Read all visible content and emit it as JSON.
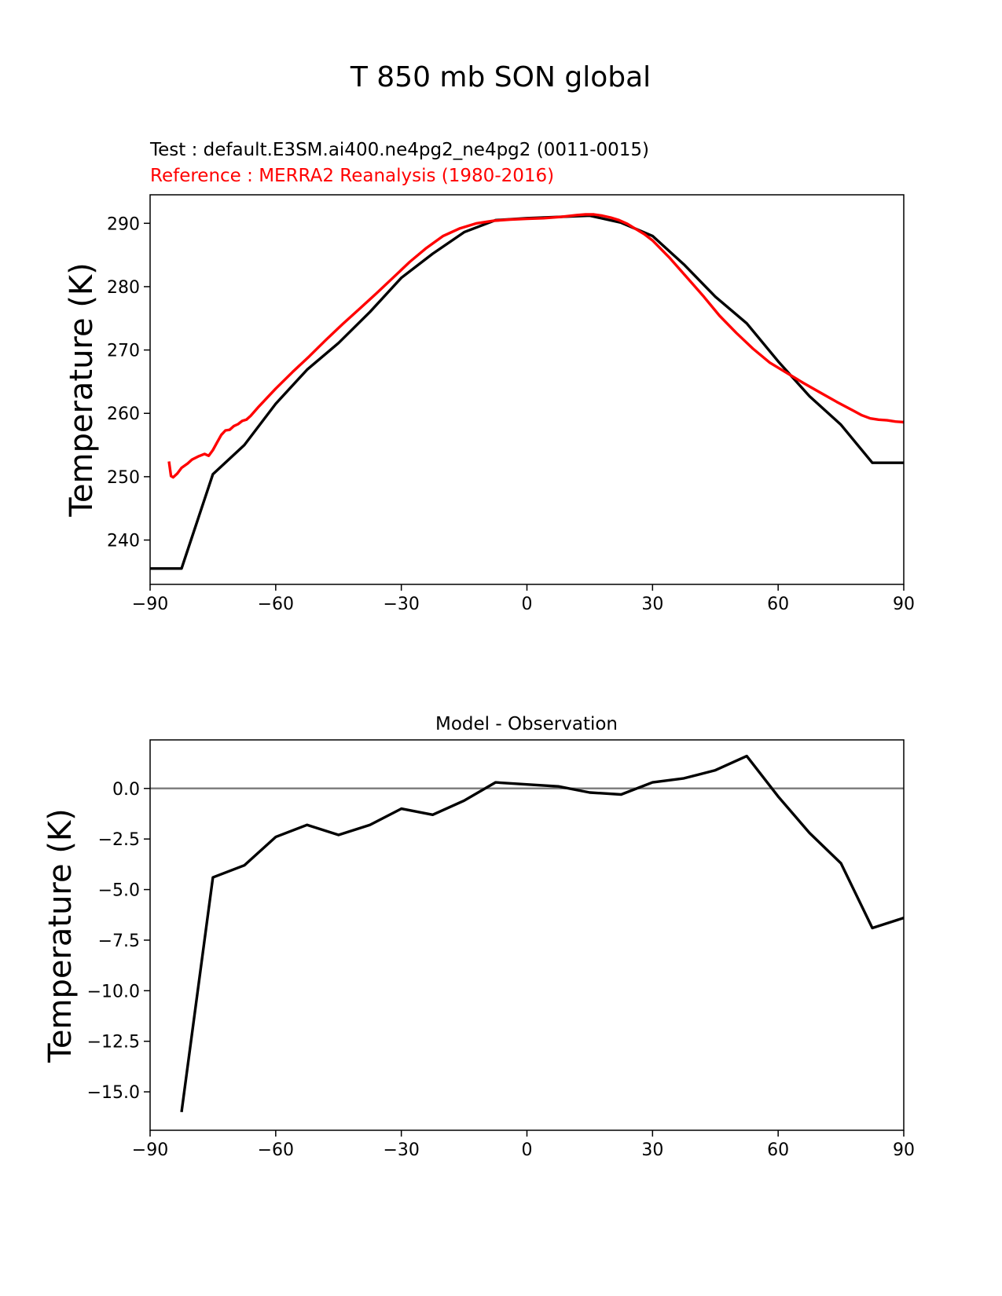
{
  "figure": {
    "suptitle": "T 850 mb SON global"
  },
  "chart_data": [
    {
      "type": "line",
      "test_label": "Test : default.E3SM.ai400.ne4pg2_ne4pg2 (0011-0015)",
      "reference_label": "Reference : MERRA2 Reanalysis (1980-2016)",
      "xlabel": "",
      "ylabel": "Temperature (K)",
      "xlim": [
        -90,
        90
      ],
      "ylim": [
        233,
        294.5
      ],
      "xticks": [
        -90,
        -60,
        -30,
        0,
        30,
        60,
        90
      ],
      "xtick_labels": [
        "−90",
        "−60",
        "−30",
        "0",
        "30",
        "60",
        "90"
      ],
      "yticks": [
        240,
        250,
        260,
        270,
        280,
        290
      ],
      "ytick_labels": [
        "240",
        "250",
        "260",
        "270",
        "280",
        "290"
      ],
      "series": [
        {
          "name": "Test",
          "color": "#000000",
          "x": [
            -90,
            -82.5,
            -75,
            -67.5,
            -60,
            -52.5,
            -45,
            -37.5,
            -30,
            -22.5,
            -15,
            -7.5,
            0,
            7.5,
            15,
            22.5,
            30,
            37.5,
            45,
            52.5,
            60,
            67.5,
            75,
            82.5,
            90
          ],
          "y": [
            235.5,
            235.5,
            250.4,
            255.0,
            261.5,
            266.9,
            271.1,
            276.0,
            281.4,
            285.2,
            288.6,
            290.5,
            290.8,
            291.0,
            291.2,
            290.1,
            288.0,
            283.5,
            278.4,
            274.2,
            268.2,
            262.7,
            258.2,
            252.2,
            252.2
          ]
        },
        {
          "name": "Reference",
          "color": "#ff0000",
          "x": [
            -85.5,
            -85,
            -84.5,
            -83.5,
            -82.5,
            -81,
            -80,
            -78.5,
            -77,
            -76,
            -75,
            -74,
            -73,
            -72,
            -71,
            -70,
            -69,
            -68,
            -67,
            -66,
            -64,
            -62,
            -60,
            -56,
            -52,
            -48,
            -44,
            -40,
            -36,
            -32,
            -28,
            -24,
            -20,
            -16,
            -12,
            -8,
            -4,
            0,
            4,
            8,
            12,
            14,
            16,
            18,
            20,
            22,
            24,
            26,
            28,
            30,
            34,
            38,
            42,
            46,
            50,
            54,
            58,
            62,
            66,
            70,
            74,
            78,
            80,
            82,
            84,
            86,
            88,
            90
          ],
          "y": [
            252.4,
            250.1,
            249.9,
            250.5,
            251.4,
            252.1,
            252.7,
            253.2,
            253.6,
            253.3,
            254.2,
            255.4,
            256.6,
            257.3,
            257.4,
            258.0,
            258.3,
            258.8,
            259.0,
            259.6,
            261.1,
            262.5,
            263.9,
            266.5,
            269.0,
            271.6,
            274.1,
            276.5,
            278.9,
            281.4,
            283.9,
            286.1,
            288.0,
            289.2,
            290.0,
            290.4,
            290.6,
            290.7,
            290.8,
            291.0,
            291.3,
            291.4,
            291.4,
            291.2,
            290.9,
            290.5,
            289.9,
            289.1,
            288.3,
            287.3,
            284.6,
            281.6,
            278.6,
            275.4,
            272.7,
            270.2,
            268.0,
            266.4,
            264.8,
            263.3,
            261.8,
            260.4,
            259.7,
            259.2,
            259.0,
            258.9,
            258.7,
            258.6
          ]
        }
      ]
    },
    {
      "type": "line",
      "title": "Model - Observation",
      "xlabel": "",
      "ylabel": "Temperature (K)",
      "xlim": [
        -90,
        90
      ],
      "ylim": [
        -16.9,
        2.4
      ],
      "xticks": [
        -90,
        -60,
        -30,
        0,
        30,
        60,
        90
      ],
      "xtick_labels": [
        "−90",
        "−60",
        "−30",
        "0",
        "30",
        "60",
        "90"
      ],
      "yticks": [
        0.0,
        -2.5,
        -5.0,
        -7.5,
        -10.0,
        -12.5,
        -15.0
      ],
      "ytick_labels": [
        "0.0",
        "−2.5",
        "−5.0",
        "−7.5",
        "−10.0",
        "−12.5",
        "−15.0"
      ],
      "zero_line_color": "#808080",
      "series": [
        {
          "name": "Model - Observation",
          "color": "#000000",
          "x": [
            -82.5,
            -75,
            -67.5,
            -60,
            -52.5,
            -45,
            -37.5,
            -30,
            -22.5,
            -15,
            -7.5,
            0,
            7.5,
            15,
            22.5,
            30,
            37.5,
            45,
            52.5,
            60,
            67.5,
            75,
            82.5,
            90
          ],
          "y": [
            -16.0,
            -4.4,
            -3.8,
            -2.4,
            -1.8,
            -2.3,
            -1.8,
            -1.0,
            -1.3,
            -0.6,
            0.3,
            0.2,
            0.1,
            -0.2,
            -0.3,
            0.3,
            0.5,
            0.9,
            1.6,
            -0.4,
            -2.2,
            -3.7,
            -6.9,
            -6.4
          ]
        }
      ]
    }
  ]
}
